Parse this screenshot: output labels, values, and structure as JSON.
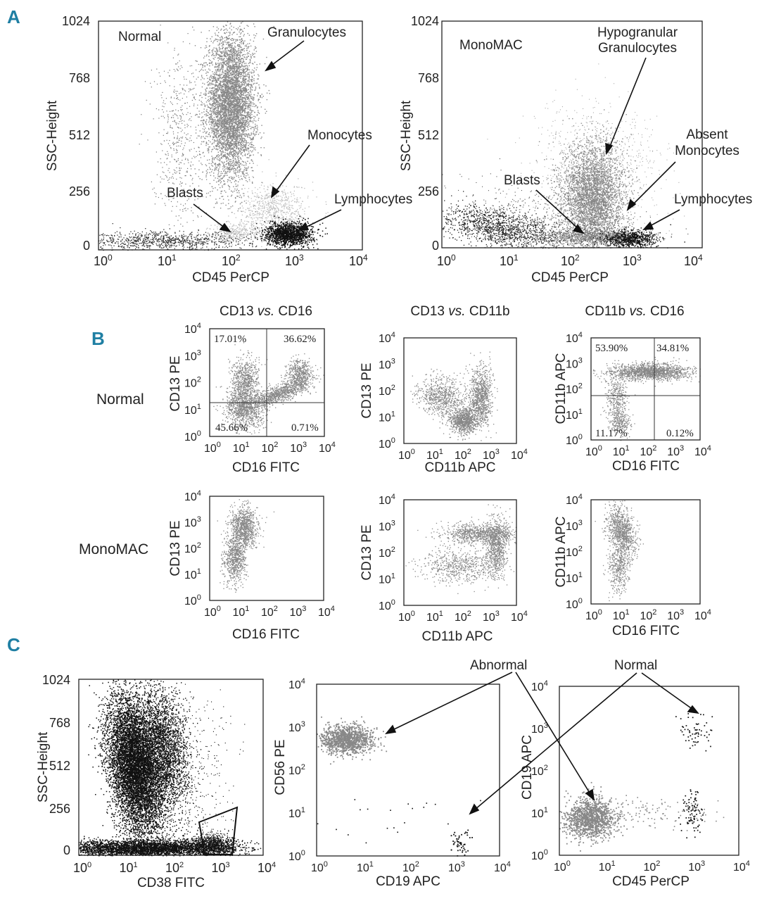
{
  "panel_labels": [
    "A",
    "B",
    "C"
  ],
  "colors": {
    "panel_letter": "#1f7fa3",
    "event_gray": "#888888",
    "event_black": "#111111"
  },
  "chart_data": [
    {
      "id": "A-normal",
      "type": "scatter",
      "panel": "A",
      "xlabel": "CD45 PerCP",
      "ylabel": "SSC-Height",
      "label": "Normal",
      "xscale": "log",
      "xlim": [
        1,
        10000
      ],
      "ylim": [
        0,
        1024
      ],
      "xticks": [
        "10^0",
        "10^1",
        "10^2",
        "10^3",
        "10^4"
      ],
      "yticks": [
        "0",
        "256",
        "512",
        "768",
        "1024"
      ],
      "populations": [
        {
          "name": "Granulocytes",
          "x_center": 100,
          "y_center": 650,
          "density": "high"
        },
        {
          "name": "Monocytes",
          "x_center": 450,
          "y_center": 230,
          "density": "low"
        },
        {
          "name": "Lymphocytes",
          "x_center": 700,
          "y_center": 60,
          "density": "high"
        },
        {
          "name": "Blasts",
          "x_center": 150,
          "y_center": 50,
          "density": "low"
        }
      ],
      "annotations": [
        "Granulocytes",
        "Monocytes",
        "Blasts",
        "Lymphocytes"
      ]
    },
    {
      "id": "A-monomac",
      "type": "scatter",
      "panel": "A",
      "xlabel": "CD45 PerCP",
      "ylabel": "SSC-Height",
      "label": "MonoMAC",
      "xscale": "log",
      "xlim": [
        1,
        10000
      ],
      "ylim": [
        0,
        1024
      ],
      "xticks": [
        "10^0",
        "10^1",
        "10^2",
        "10^3",
        "10^4"
      ],
      "yticks": [
        "0",
        "256",
        "512",
        "768",
        "1024"
      ],
      "populations": [
        {
          "name": "Hypogranular Granulocytes",
          "x_center": 200,
          "y_center": 220,
          "density": "high"
        },
        {
          "name": "Blasts",
          "x_center": 180,
          "y_center": 50,
          "density": "medium"
        },
        {
          "name": "Lymphocytes",
          "x_center": 700,
          "y_center": 40,
          "density": "medium"
        }
      ],
      "annotations": [
        "Hypogranular\nGranulocytes",
        "Absent\nMonocytes",
        "Blasts",
        "Lymphocytes"
      ]
    },
    {
      "id": "B-normal-cd13-cd16",
      "type": "scatter",
      "panel": "B",
      "title": "CD13 vs. CD16",
      "xlabel": "CD16 FITC",
      "ylabel": "CD13 PE",
      "xscale": "log",
      "yscale": "log",
      "xlim": [
        1,
        10000
      ],
      "ylim": [
        1,
        10000
      ],
      "quadrants": {
        "upper_left": "17.01%",
        "upper_right": "36.62%",
        "lower_left": "45.66%",
        "lower_right": "0.71%"
      }
    },
    {
      "id": "B-normal-cd13-cd11b",
      "type": "scatter",
      "panel": "B",
      "title": "CD13 vs. CD11b",
      "xlabel": "CD11b APC",
      "ylabel": "CD13 PE",
      "xscale": "log",
      "yscale": "log",
      "xlim": [
        1,
        10000
      ],
      "ylim": [
        1,
        10000
      ]
    },
    {
      "id": "B-normal-cd11b-cd16",
      "type": "scatter",
      "panel": "B",
      "title": "CD11b vs. CD16",
      "xlabel": "CD16 FITC",
      "ylabel": "CD11b APC",
      "xscale": "log",
      "yscale": "log",
      "xlim": [
        1,
        10000
      ],
      "ylim": [
        1,
        10000
      ],
      "quadrants": {
        "upper_left": "53.90%",
        "upper_right": "34.81%",
        "lower_left": "11.17%",
        "lower_right": "0.12%"
      }
    },
    {
      "id": "B-monomac-cd13-cd16",
      "type": "scatter",
      "panel": "B",
      "xlabel": "CD16 FITC",
      "ylabel": "CD13 PE",
      "xscale": "log",
      "yscale": "log",
      "xlim": [
        1,
        10000
      ],
      "ylim": [
        1,
        10000
      ]
    },
    {
      "id": "B-monomac-cd13-cd11b",
      "type": "scatter",
      "panel": "B",
      "xlabel": "CD11b APC",
      "ylabel": "CD13 PE",
      "xscale": "log",
      "yscale": "log",
      "xlim": [
        1,
        10000
      ],
      "ylim": [
        1,
        10000
      ]
    },
    {
      "id": "B-monomac-cd11b-cd16",
      "type": "scatter",
      "panel": "B",
      "xlabel": "CD16 FITC",
      "ylabel": "CD11b APC",
      "xscale": "log",
      "yscale": "log",
      "xlim": [
        1,
        10000
      ],
      "ylim": [
        1,
        10000
      ]
    },
    {
      "id": "C-ssc-cd38",
      "type": "scatter",
      "panel": "C",
      "xlabel": "CD38 FITC",
      "ylabel": "SSC-Height",
      "xscale": "log",
      "xlim": [
        1,
        10000
      ],
      "ylim": [
        0,
        1024
      ],
      "yticks": [
        "0",
        "256",
        "512",
        "768",
        "1024"
      ]
    },
    {
      "id": "C-cd56-cd19",
      "type": "scatter",
      "panel": "C",
      "xlabel": "CD19 APC",
      "ylabel": "CD56 PE",
      "xscale": "log",
      "yscale": "log",
      "xlim": [
        1,
        10000
      ],
      "ylim": [
        1,
        10000
      ]
    },
    {
      "id": "C-cd19-cd45",
      "type": "scatter",
      "panel": "C",
      "xlabel": "CD45 PerCP",
      "ylabel": "CD19 APC",
      "xscale": "log",
      "yscale": "log",
      "xlim": [
        1,
        10000
      ],
      "ylim": [
        1,
        10000
      ]
    }
  ],
  "row_labels": [
    "Normal",
    "MonoMAC"
  ],
  "column_titles": [
    {
      "a": "CD13 ",
      "vs": "vs.",
      "b": " CD16"
    },
    {
      "a": "CD13 ",
      "vs": "vs.",
      "b": " CD11b"
    },
    {
      "a": "CD11b ",
      "vs": "vs.",
      "b": " CD16"
    }
  ],
  "c_annotations": [
    "Abnormal",
    "Normal"
  ]
}
